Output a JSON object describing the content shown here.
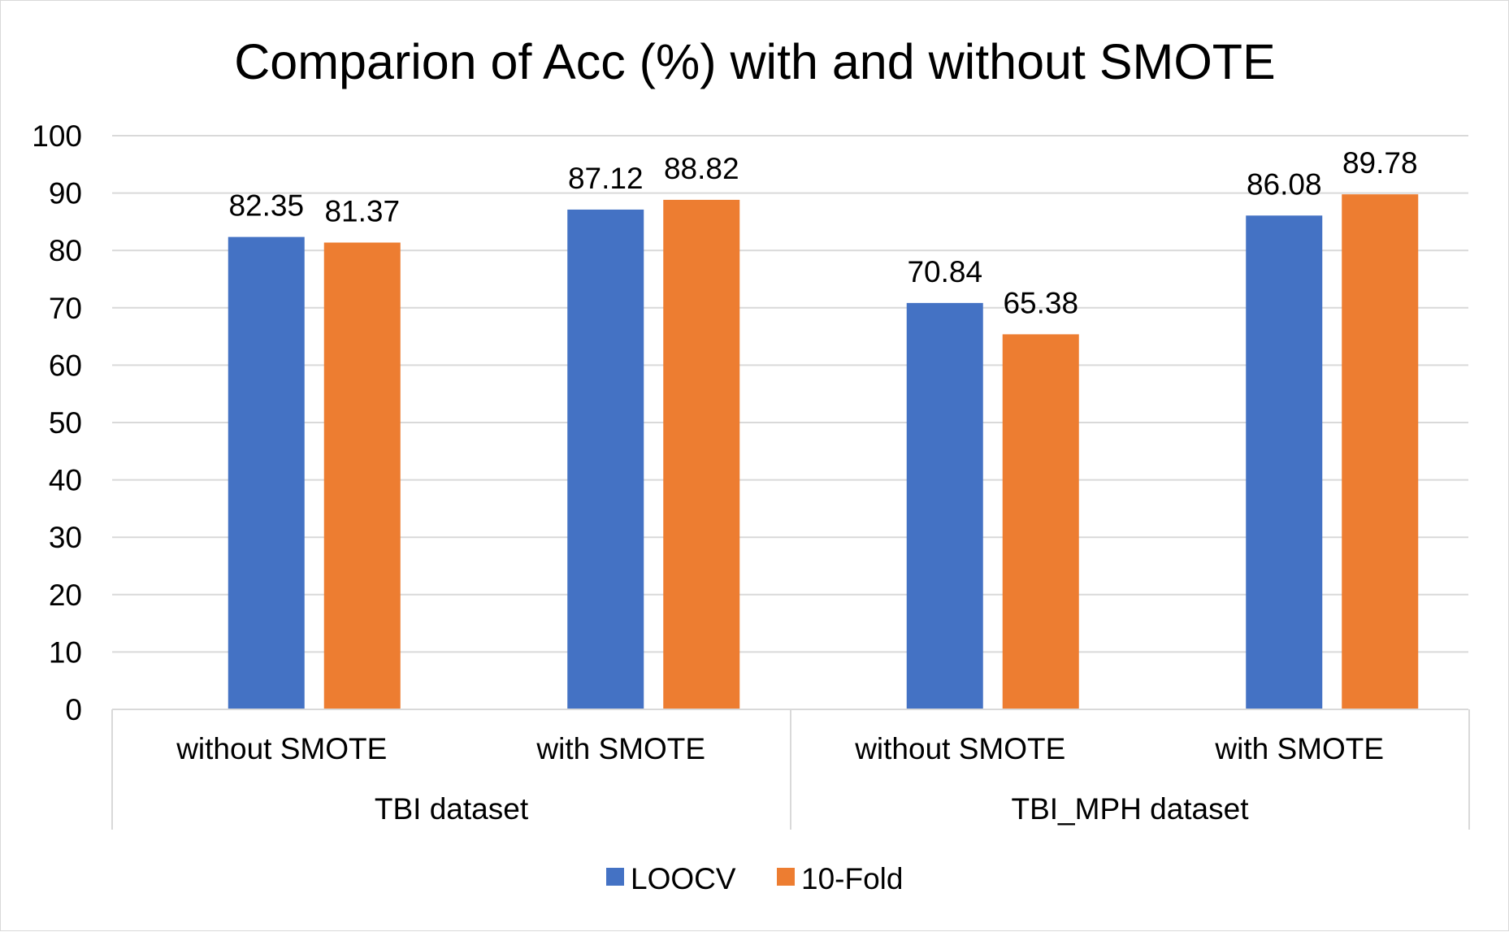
{
  "chart_data": {
    "type": "bar",
    "title": "Comparion of Acc (%) with and without SMOTE",
    "categories": [
      "without SMOTE",
      "with SMOTE",
      "without SMOTE",
      "with SMOTE"
    ],
    "groups": [
      {
        "label": "TBI dataset",
        "categories": [
          "without SMOTE",
          "with SMOTE"
        ]
      },
      {
        "label": "TBI_MPH dataset",
        "categories": [
          "without SMOTE",
          "with SMOTE"
        ]
      }
    ],
    "series": [
      {
        "name": "LOOCV",
        "color": "#4472C4",
        "values": [
          82.35,
          87.12,
          70.84,
          86.08
        ]
      },
      {
        "name": "10-Fold",
        "color": "#ED7D31",
        "values": [
          81.37,
          88.82,
          65.38,
          89.78
        ]
      }
    ],
    "ylim": [
      0,
      100
    ],
    "yticks": [
      0,
      10,
      20,
      30,
      40,
      50,
      60,
      70,
      80,
      90,
      100
    ],
    "grid": true,
    "legend_position": "bottom",
    "xlabel": "",
    "ylabel": ""
  }
}
